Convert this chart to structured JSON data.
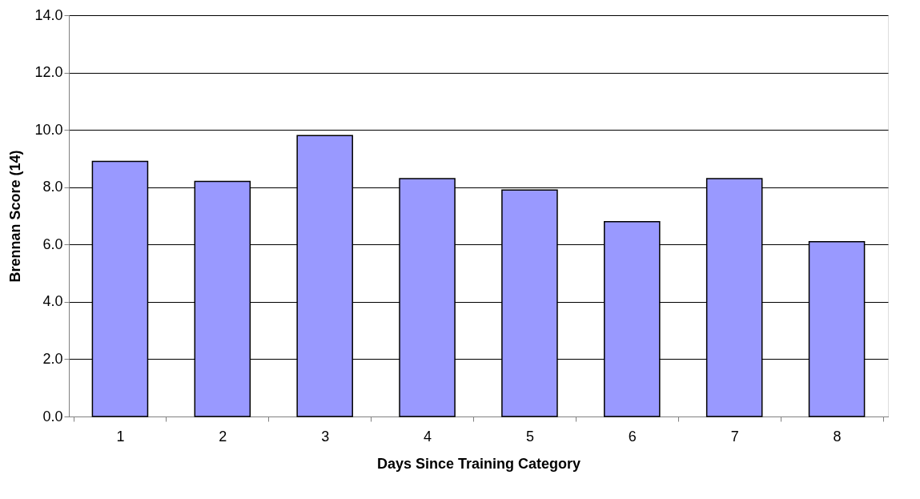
{
  "chart_data": {
    "type": "bar",
    "xlabel": "Days Since Training Category",
    "ylabel": "Brennan Score (14)",
    "categories": [
      "1",
      "2",
      "3",
      "4",
      "5",
      "6",
      "7",
      "8"
    ],
    "values": [
      8.9,
      8.2,
      9.8,
      8.3,
      7.9,
      6.8,
      8.3,
      6.1
    ],
    "color": "#9999ff",
    "ylim": [
      0,
      14
    ],
    "yticks": [
      {
        "value": 0,
        "label": "0.0"
      },
      {
        "value": 2,
        "label": "2.0"
      },
      {
        "value": 4,
        "label": "4.0"
      },
      {
        "value": 6,
        "label": "6.0"
      },
      {
        "value": 8,
        "label": "8.0"
      },
      {
        "value": 10,
        "label": "10.0"
      },
      {
        "value": 12,
        "label": "12.0"
      },
      {
        "value": 14,
        "label": "14.0"
      }
    ],
    "grid": "y"
  }
}
